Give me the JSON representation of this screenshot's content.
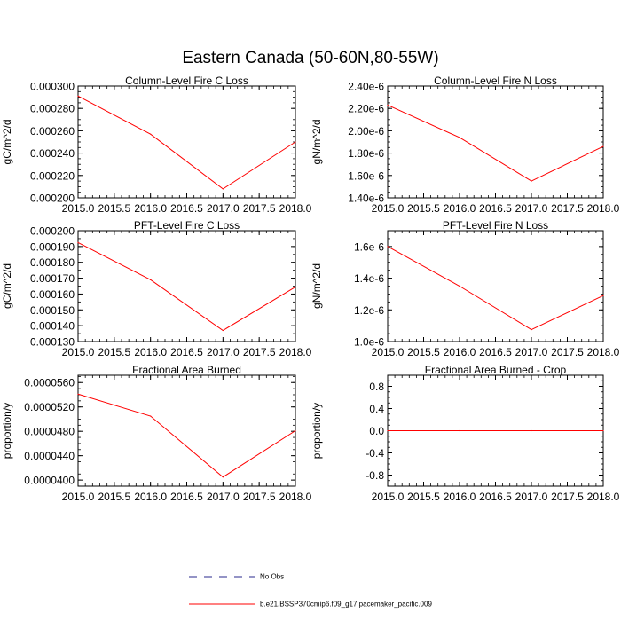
{
  "figure": {
    "title": "Eastern Canada (50-60N,80-55W)",
    "series_color": "#ff0000",
    "obs_color": "#2a2a8c"
  },
  "legend": {
    "obs_label": "No Obs",
    "model_label": "b.e21.BSSP370cmip6.f09_g17.pacemaker_pacific.009"
  },
  "chart_data": [
    {
      "type": "line",
      "title": "Column-Level Fire C Loss",
      "xlabel": "",
      "ylabel": "gC/m^2/d",
      "xlim": [
        2015.0,
        2018.0
      ],
      "ylim": [
        0.0002,
        0.0003
      ],
      "xticks": [
        "2015.0",
        "2015.5",
        "2016.0",
        "2016.5",
        "2017.0",
        "2017.5",
        "2018.0"
      ],
      "yticks": [
        {
          "value": 0.0002,
          "label": "0.000200"
        },
        {
          "value": 0.00022,
          "label": "0.000220"
        },
        {
          "value": 0.00024,
          "label": "0.000240"
        },
        {
          "value": 0.00026,
          "label": "0.000260"
        },
        {
          "value": 0.00028,
          "label": "0.000280"
        },
        {
          "value": 0.0003,
          "label": "0.000300"
        }
      ],
      "minor_y_step": 5e-06,
      "x": [
        2015,
        2016,
        2017,
        2018
      ],
      "values": [
        0.000291,
        0.000257,
        0.000208,
        0.00025
      ]
    },
    {
      "type": "line",
      "title": "Column-Level Fire N Loss",
      "xlabel": "",
      "ylabel": "gN/m^2/d",
      "xlim": [
        2015.0,
        2018.0
      ],
      "ylim": [
        1.4e-06,
        2.4e-06
      ],
      "xticks": [
        "2015.0",
        "2015.5",
        "2016.0",
        "2016.5",
        "2017.0",
        "2017.5",
        "2018.0"
      ],
      "yticks": [
        {
          "value": 1.4e-06,
          "label": "1.40e-6"
        },
        {
          "value": 1.6e-06,
          "label": "1.60e-6"
        },
        {
          "value": 1.8e-06,
          "label": "1.80e-6"
        },
        {
          "value": 2e-06,
          "label": "2.00e-6"
        },
        {
          "value": 2.2e-06,
          "label": "2.20e-6"
        },
        {
          "value": 2.4e-06,
          "label": "2.40e-6"
        }
      ],
      "minor_y_step": 5e-08,
      "x": [
        2015,
        2016,
        2017,
        2018
      ],
      "values": [
        2.23e-06,
        1.94e-06,
        1.55e-06,
        1.86e-06
      ]
    },
    {
      "type": "line",
      "title": "PFT-Level Fire C Loss",
      "xlabel": "",
      "ylabel": "gC/m^2/d",
      "xlim": [
        2015.0,
        2018.0
      ],
      "ylim": [
        0.00013,
        0.0002
      ],
      "xticks": [
        "2015.0",
        "2015.5",
        "2016.0",
        "2016.5",
        "2017.0",
        "2017.5",
        "2018.0"
      ],
      "yticks": [
        {
          "value": 0.00013,
          "label": "0.000130"
        },
        {
          "value": 0.00014,
          "label": "0.000140"
        },
        {
          "value": 0.00015,
          "label": "0.000150"
        },
        {
          "value": 0.00016,
          "label": "0.000160"
        },
        {
          "value": 0.00017,
          "label": "0.000170"
        },
        {
          "value": 0.00018,
          "label": "0.000180"
        },
        {
          "value": 0.00019,
          "label": "0.000190"
        },
        {
          "value": 0.0002,
          "label": "0.000200"
        }
      ],
      "minor_y_step": 5e-06,
      "x": [
        2015,
        2016,
        2017,
        2018
      ],
      "values": [
        0.0001925,
        0.000169,
        0.000137,
        0.0001645
      ]
    },
    {
      "type": "line",
      "title": "PFT-Level Fire N Loss",
      "xlabel": "",
      "ylabel": "gN/m^2/d",
      "xlim": [
        2015.0,
        2018.0
      ],
      "ylim": [
        1e-06,
        1.7e-06
      ],
      "xticks": [
        "2015.0",
        "2015.5",
        "2016.0",
        "2016.5",
        "2017.0",
        "2017.5",
        "2018.0"
      ],
      "yticks": [
        {
          "value": 1e-06,
          "label": "1.0e-6"
        },
        {
          "value": 1.2e-06,
          "label": "1.2e-6"
        },
        {
          "value": 1.4e-06,
          "label": "1.4e-6"
        },
        {
          "value": 1.6e-06,
          "label": "1.6e-6"
        }
      ],
      "minor_y_step": 5e-08,
      "x": [
        2015,
        2016,
        2017,
        2018
      ],
      "values": [
        1.6e-06,
        1.35e-06,
        1.075e-06,
        1.29e-06
      ]
    },
    {
      "type": "line",
      "title": "Fractional Area Burned",
      "xlabel": "",
      "ylabel": "proportion/y",
      "xlim": [
        2015.0,
        2018.0
      ],
      "ylim": [
        3.9e-05,
        5.72e-05
      ],
      "xticks": [
        "2015.0",
        "2015.5",
        "2016.0",
        "2016.5",
        "2017.0",
        "2017.5",
        "2018.0"
      ],
      "yticks": [
        {
          "value": 4e-05,
          "label": "0.0000400"
        },
        {
          "value": 4.4e-05,
          "label": "0.0000440"
        },
        {
          "value": 4.8e-05,
          "label": "0.0000480"
        },
        {
          "value": 5.2e-05,
          "label": "0.0000520"
        },
        {
          "value": 5.6e-05,
          "label": "0.0000560"
        }
      ],
      "minor_y_step": 1e-06,
      "x": [
        2015,
        2016,
        2017,
        2018
      ],
      "values": [
        5.41e-05,
        5.05e-05,
        4.05e-05,
        4.81e-05
      ]
    },
    {
      "type": "line",
      "title": "Fractional Area Burned - Crop",
      "xlabel": "",
      "ylabel": "proportion/y",
      "xlim": [
        2015.0,
        2018.0
      ],
      "ylim": [
        -1.0,
        1.0
      ],
      "xticks": [
        "2015.0",
        "2015.5",
        "2016.0",
        "2016.5",
        "2017.0",
        "2017.5",
        "2018.0"
      ],
      "yticks": [
        {
          "value": -0.8,
          "label": "-0.8"
        },
        {
          "value": -0.4,
          "label": "-0.4"
        },
        {
          "value": 0.0,
          "label": "0.0"
        },
        {
          "value": 0.4,
          "label": "0.4"
        },
        {
          "value": 0.8,
          "label": "0.8"
        }
      ],
      "minor_y_step": 0.1,
      "x": [
        2015,
        2016,
        2017,
        2018
      ],
      "values": [
        0,
        0,
        0,
        0
      ]
    }
  ]
}
